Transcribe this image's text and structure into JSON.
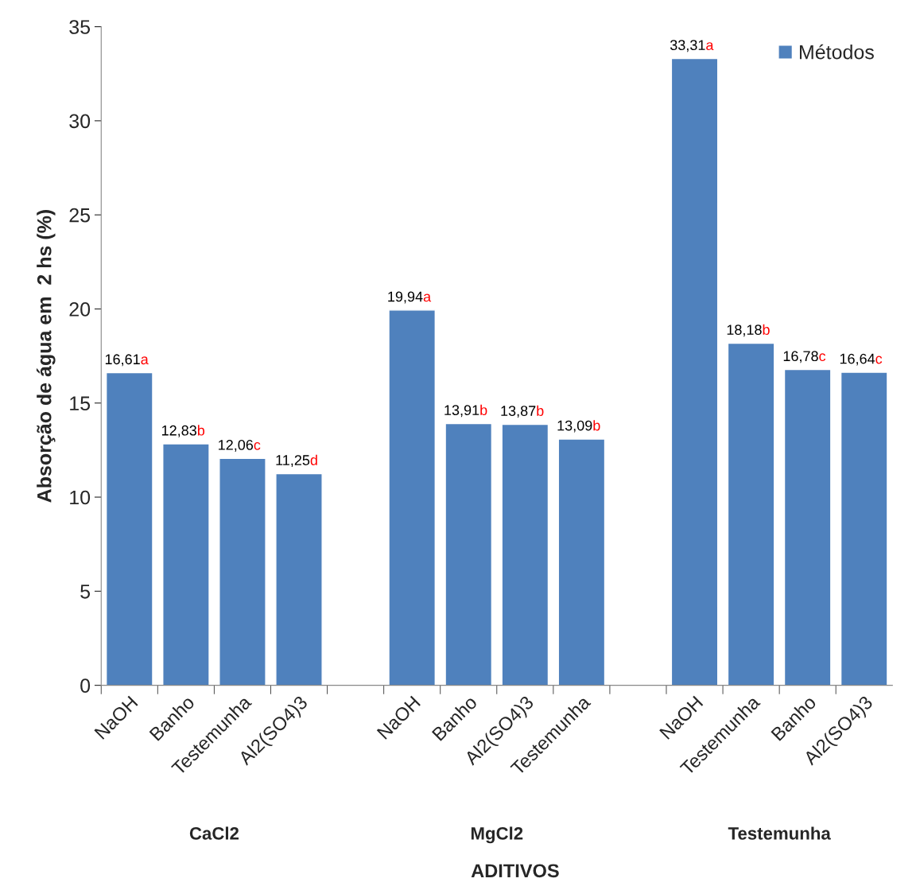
{
  "chart_data": {
    "type": "bar",
    "ylabel": "Absorção de água em  2 hs (%)",
    "xlabel": "ADITIVOS",
    "categories": [
      "NaOH",
      "Banho",
      "Testemunha",
      "Al2(SO4)3",
      null,
      "NaOH",
      "Banho",
      "Al2(SO4)3",
      "Testemunha",
      null,
      "NaOH",
      "Testemunha",
      "Banho",
      "Al2(SO4)3"
    ],
    "series": [
      {
        "name": "Métodos",
        "color": "#4f81bd",
        "values": [
          16.61,
          12.83,
          12.06,
          11.25,
          null,
          19.94,
          13.91,
          13.87,
          13.09,
          null,
          33.31,
          18.18,
          16.78,
          16.64
        ],
        "value_labels": [
          "16,61a",
          "12,83b",
          "12,06c",
          "11,25d",
          null,
          "19,94a",
          "13,91b",
          "13,87b",
          "13,09b",
          null,
          "33,31a",
          "18,18b",
          "16,78c",
          "16,64c"
        ]
      }
    ],
    "annotations": [
      "CaCl2",
      "MgCl2",
      "Testemunha"
    ],
    "ylim": [
      0,
      35
    ],
    "yticks": [
      0,
      5,
      10,
      15,
      20,
      25,
      30,
      35
    ],
    "grid": false,
    "legend": "top right"
  }
}
